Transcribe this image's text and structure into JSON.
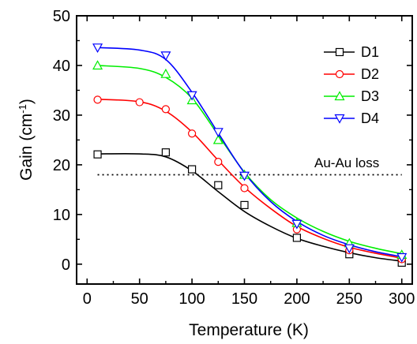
{
  "chart_data": {
    "type": "line",
    "xlabel": "Temperature (K)",
    "ylabel_main": "Gain (cm",
    "ylabel_sup": "-1",
    "ylabel_close": ")",
    "xlim": [
      -10,
      310
    ],
    "ylim": [
      -4,
      50
    ],
    "xticks": [
      0,
      50,
      100,
      150,
      200,
      250,
      300
    ],
    "yticks": [
      0,
      10,
      20,
      30,
      40,
      50
    ],
    "legend_position": "top-right",
    "annotation": {
      "text": "Au-Au loss",
      "y": 18
    },
    "reference_line": {
      "y": 18,
      "x_from": 10,
      "x_to": 300,
      "style": "dotted"
    },
    "series": [
      {
        "name": "D1",
        "marker": "square",
        "color": "#000000",
        "points": [
          [
            10,
            22.1
          ],
          [
            75,
            22.5
          ],
          [
            100,
            19.1
          ],
          [
            125,
            15.9
          ],
          [
            150,
            11.9
          ],
          [
            200,
            5.3
          ],
          [
            250,
            2.0
          ],
          [
            300,
            0.3
          ]
        ],
        "fit": [
          [
            10,
            22.2
          ],
          [
            50,
            22.2
          ],
          [
            75,
            21.6
          ],
          [
            100,
            18.8
          ],
          [
            125,
            14.6
          ],
          [
            150,
            10.6
          ],
          [
            175,
            7.6
          ],
          [
            200,
            5.2
          ],
          [
            225,
            3.6
          ],
          [
            250,
            2.3
          ],
          [
            275,
            1.3
          ],
          [
            300,
            0.6
          ]
        ]
      },
      {
        "name": "D2",
        "marker": "circle",
        "color": "#ff0000",
        "points": [
          [
            10,
            33.1
          ],
          [
            50,
            32.6
          ],
          [
            75,
            31.2
          ],
          [
            100,
            26.3
          ],
          [
            125,
            20.6
          ],
          [
            150,
            15.3
          ],
          [
            200,
            7.0
          ],
          [
            250,
            2.8
          ],
          [
            300,
            1.0
          ]
        ],
        "fit": [
          [
            10,
            33.2
          ],
          [
            50,
            32.7
          ],
          [
            75,
            30.8
          ],
          [
            100,
            26.6
          ],
          [
            125,
            20.9
          ],
          [
            150,
            15.5
          ],
          [
            175,
            11.2
          ],
          [
            200,
            7.6
          ],
          [
            225,
            5.2
          ],
          [
            250,
            3.4
          ],
          [
            275,
            2.2
          ],
          [
            300,
            1.2
          ]
        ]
      },
      {
        "name": "D3",
        "marker": "triangle-up",
        "color": "#00ee00",
        "points": [
          [
            10,
            40.0
          ],
          [
            75,
            38.3
          ],
          [
            100,
            33.0
          ],
          [
            125,
            25.0
          ],
          [
            150,
            18.0
          ],
          [
            200,
            8.3
          ],
          [
            250,
            4.2
          ],
          [
            300,
            1.9
          ]
        ],
        "fit": [
          [
            10,
            40.0
          ],
          [
            50,
            39.4
          ],
          [
            75,
            37.6
          ],
          [
            100,
            33.4
          ],
          [
            125,
            26.0
          ],
          [
            150,
            18.5
          ],
          [
            175,
            13.0
          ],
          [
            200,
            9.3
          ],
          [
            225,
            6.6
          ],
          [
            250,
            4.6
          ],
          [
            275,
            3.2
          ],
          [
            300,
            2.1
          ]
        ]
      },
      {
        "name": "D4",
        "marker": "triangle-down",
        "color": "#0000ff",
        "points": [
          [
            10,
            43.6
          ],
          [
            75,
            42.0
          ],
          [
            100,
            34.0
          ],
          [
            125,
            26.6
          ],
          [
            150,
            17.8
          ],
          [
            200,
            8.1
          ],
          [
            250,
            3.2
          ],
          [
            300,
            1.4
          ]
        ],
        "fit": [
          [
            10,
            43.6
          ],
          [
            50,
            43.1
          ],
          [
            75,
            41.2
          ],
          [
            100,
            34.6
          ],
          [
            125,
            26.4
          ],
          [
            150,
            18.4
          ],
          [
            175,
            12.6
          ],
          [
            200,
            8.6
          ],
          [
            225,
            5.8
          ],
          [
            250,
            3.9
          ],
          [
            275,
            2.5
          ],
          [
            300,
            1.5
          ]
        ]
      }
    ]
  }
}
